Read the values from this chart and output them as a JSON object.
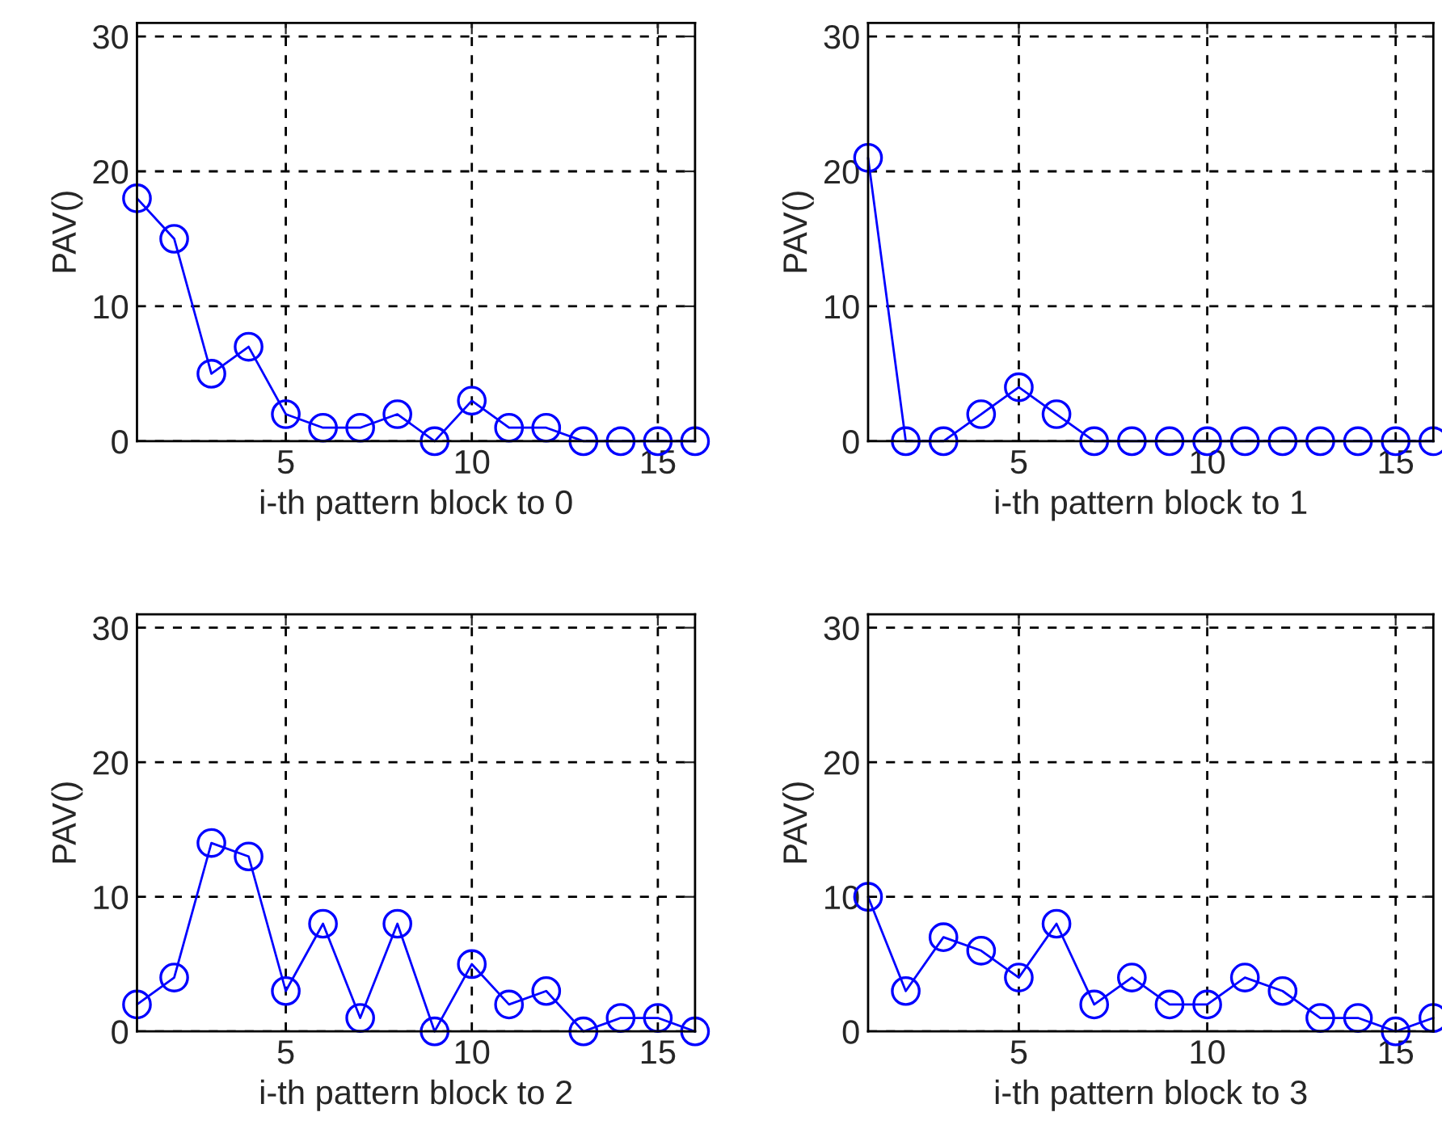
{
  "chart_data": [
    {
      "type": "line",
      "xlabel": "i-th pattern block to 0",
      "ylabel": "PAV()",
      "x": [
        1,
        2,
        3,
        4,
        5,
        6,
        7,
        8,
        9,
        10,
        11,
        12,
        13,
        14,
        15,
        16
      ],
      "series": [
        {
          "color": "#0000ff",
          "values": [
            18,
            15,
            5,
            7,
            2,
            1,
            1,
            2,
            0,
            3,
            1,
            1,
            0,
            0,
            0,
            0
          ]
        }
      ],
      "xlim": [
        1,
        16
      ],
      "ylim": [
        0,
        31
      ],
      "xticks": [
        5,
        10,
        15
      ],
      "yticks": [
        0,
        10,
        20,
        30
      ],
      "grid": true,
      "marker": "circle",
      "line_style": "solid"
    },
    {
      "type": "line",
      "xlabel": "i-th pattern block to 1",
      "ylabel": "PAV()",
      "x": [
        1,
        2,
        3,
        4,
        5,
        6,
        7,
        8,
        9,
        10,
        11,
        12,
        13,
        14,
        15,
        16
      ],
      "series": [
        {
          "color": "#0000ff",
          "values": [
            21,
            0,
            0,
            2,
            4,
            2,
            0,
            0,
            0,
            0,
            0,
            0,
            0,
            0,
            0,
            0
          ]
        }
      ],
      "xlim": [
        1,
        16
      ],
      "ylim": [
        0,
        31
      ],
      "xticks": [
        5,
        10,
        15
      ],
      "yticks": [
        0,
        10,
        20,
        30
      ],
      "grid": true,
      "marker": "circle",
      "line_style": "solid"
    },
    {
      "type": "line",
      "xlabel": "i-th pattern block to 2",
      "ylabel": "PAV()",
      "x": [
        1,
        2,
        3,
        4,
        5,
        6,
        7,
        8,
        9,
        10,
        11,
        12,
        13,
        14,
        15,
        16
      ],
      "series": [
        {
          "color": "#0000ff",
          "values": [
            2,
            4,
            14,
            13,
            3,
            8,
            1,
            8,
            0,
            5,
            2,
            3,
            0,
            1,
            1,
            0
          ]
        }
      ],
      "xlim": [
        1,
        16
      ],
      "ylim": [
        0,
        31
      ],
      "xticks": [
        5,
        10,
        15
      ],
      "yticks": [
        0,
        10,
        20,
        30
      ],
      "grid": true,
      "marker": "circle",
      "line_style": "solid"
    },
    {
      "type": "line",
      "xlabel": "i-th pattern block to 3",
      "ylabel": "PAV()",
      "x": [
        1,
        2,
        3,
        4,
        5,
        6,
        7,
        8,
        9,
        10,
        11,
        12,
        13,
        14,
        15,
        16
      ],
      "series": [
        {
          "color": "#0000ff",
          "values": [
            10,
            3,
            7,
            6,
            4,
            8,
            2,
            4,
            2,
            2,
            4,
            3,
            1,
            1,
            0,
            1
          ]
        }
      ],
      "xlim": [
        1,
        16
      ],
      "ylim": [
        0,
        31
      ],
      "xticks": [
        5,
        10,
        15
      ],
      "yticks": [
        0,
        10,
        20,
        30
      ],
      "grid": true,
      "marker": "circle",
      "line_style": "solid"
    }
  ]
}
